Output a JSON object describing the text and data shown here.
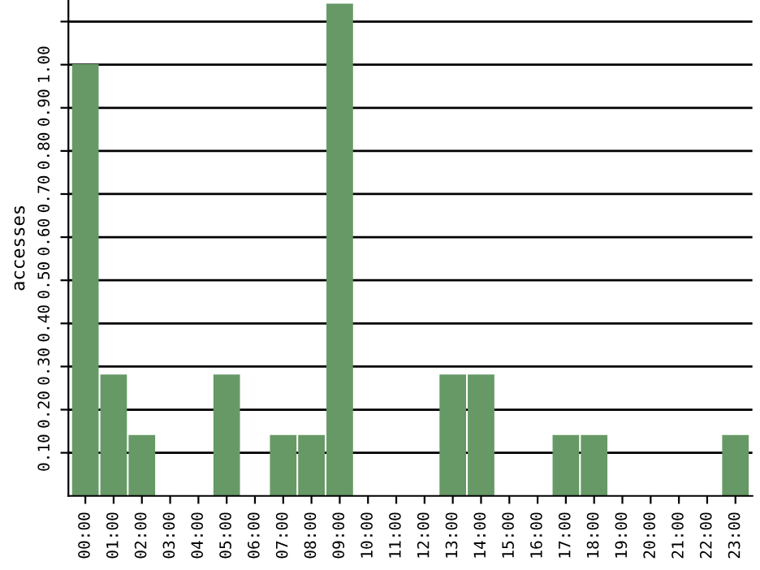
{
  "chart_data": {
    "type": "bar",
    "ylabel": "accesses",
    "categories": [
      "00:00",
      "01:00",
      "02:00",
      "03:00",
      "04:00",
      "05:00",
      "06:00",
      "07:00",
      "08:00",
      "09:00",
      "10:00",
      "11:00",
      "12:00",
      "13:00",
      "14:00",
      "15:00",
      "16:00",
      "17:00",
      "18:00",
      "19:00",
      "20:00",
      "21:00",
      "22:00",
      "23:00"
    ],
    "values": [
      1.0,
      0.28,
      0.14,
      0,
      0,
      0.28,
      0,
      0.14,
      0.14,
      1.14,
      0,
      0,
      0,
      0.28,
      0.28,
      0,
      0,
      0.14,
      0.14,
      0,
      0,
      0,
      0,
      0.14
    ],
    "color": "#669966",
    "ylim": [
      0,
      1.15
    ],
    "yticks": [
      {
        "value": 0.1,
        "label": "0.10"
      },
      {
        "value": 0.2,
        "label": "0.20"
      },
      {
        "value": 0.3,
        "label": "0.30"
      },
      {
        "value": 0.4,
        "label": "0.40"
      },
      {
        "value": 0.5,
        "label": "0.50"
      },
      {
        "value": 0.6,
        "label": "0.60"
      },
      {
        "value": 0.7,
        "label": "0.70"
      },
      {
        "value": 0.8,
        "label": "0.80"
      },
      {
        "value": 0.9,
        "label": "0.90"
      },
      {
        "value": 1.0,
        "label": "1.00"
      },
      {
        "value": 1.1,
        "label": null
      }
    ],
    "grid": "y"
  }
}
